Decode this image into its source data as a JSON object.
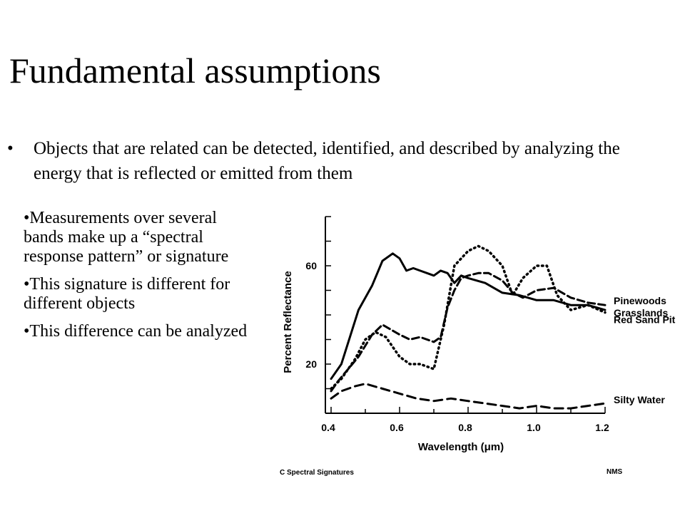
{
  "slide": {
    "title": "Fundamental assumptions",
    "bullet_symbol": "•",
    "main_bullet": "Objects that are related can be detected, identified, and described by analyzing the energy that is reflected or emitted from them",
    "side_bullets": [
      "•Measurements over several bands make up a “spectral response pattern” or signature",
      "•This signature is different for different objects",
      "•This difference can be analyzed"
    ]
  },
  "chart_data": {
    "type": "line",
    "xlabel": "Wavelength (μm)",
    "ylabel": "Percent Reflectance",
    "x_ticks": [
      "0.4",
      "0.6",
      "0.8",
      "1.0",
      "1.2"
    ],
    "y_ticks": [
      "20",
      "60"
    ],
    "xlim": [
      0.4,
      1.2
    ],
    "ylim": [
      0,
      80
    ],
    "caption": "C  Spectral Signatures",
    "credit": "NMS",
    "series": [
      {
        "name": "Pinewoods",
        "style": "solid",
        "points": [
          [
            0.4,
            14
          ],
          [
            0.43,
            20
          ],
          [
            0.48,
            42
          ],
          [
            0.52,
            52
          ],
          [
            0.55,
            62
          ],
          [
            0.58,
            65
          ],
          [
            0.6,
            63
          ],
          [
            0.62,
            58
          ],
          [
            0.64,
            59
          ],
          [
            0.66,
            58
          ],
          [
            0.68,
            57
          ],
          [
            0.7,
            56
          ],
          [
            0.72,
            58
          ],
          [
            0.74,
            57
          ],
          [
            0.76,
            53
          ],
          [
            0.78,
            56
          ],
          [
            0.8,
            55
          ],
          [
            0.85,
            53
          ],
          [
            0.9,
            49
          ],
          [
            0.95,
            48
          ],
          [
            1.0,
            46
          ],
          [
            1.05,
            46
          ],
          [
            1.1,
            44
          ],
          [
            1.15,
            44
          ],
          [
            1.2,
            42
          ]
        ]
      },
      {
        "name": "Grasslands",
        "style": "dashed",
        "points": [
          [
            0.4,
            9
          ],
          [
            0.42,
            13
          ],
          [
            0.45,
            18
          ],
          [
            0.48,
            23
          ],
          [
            0.52,
            32
          ],
          [
            0.55,
            36
          ],
          [
            0.6,
            32
          ],
          [
            0.63,
            30
          ],
          [
            0.66,
            31
          ],
          [
            0.7,
            29
          ],
          [
            0.72,
            31
          ],
          [
            0.74,
            43
          ],
          [
            0.76,
            50
          ],
          [
            0.78,
            55
          ],
          [
            0.8,
            56
          ],
          [
            0.83,
            57
          ],
          [
            0.86,
            57
          ],
          [
            0.9,
            54
          ],
          [
            0.93,
            49
          ],
          [
            0.96,
            47
          ],
          [
            1.0,
            50
          ],
          [
            1.05,
            51
          ],
          [
            1.1,
            47
          ],
          [
            1.15,
            45
          ],
          [
            1.2,
            44
          ]
        ]
      },
      {
        "name": "Red Sand Pit",
        "style": "dotted",
        "points": [
          [
            0.4,
            10
          ],
          [
            0.43,
            14
          ],
          [
            0.47,
            22
          ],
          [
            0.5,
            30
          ],
          [
            0.53,
            33
          ],
          [
            0.56,
            31
          ],
          [
            0.6,
            23
          ],
          [
            0.63,
            20
          ],
          [
            0.66,
            20
          ],
          [
            0.7,
            18
          ],
          [
            0.73,
            36
          ],
          [
            0.76,
            60
          ],
          [
            0.78,
            63
          ],
          [
            0.8,
            66
          ],
          [
            0.83,
            68
          ],
          [
            0.86,
            66
          ],
          [
            0.9,
            60
          ],
          [
            0.93,
            48
          ],
          [
            0.96,
            55
          ],
          [
            1.0,
            60
          ],
          [
            1.03,
            60
          ],
          [
            1.06,
            48
          ],
          [
            1.1,
            42
          ],
          [
            1.15,
            44
          ],
          [
            1.2,
            41
          ]
        ]
      },
      {
        "name": "Silty Water",
        "style": "long-dash",
        "points": [
          [
            0.4,
            6
          ],
          [
            0.43,
            9
          ],
          [
            0.47,
            11
          ],
          [
            0.5,
            12
          ],
          [
            0.55,
            10
          ],
          [
            0.6,
            8
          ],
          [
            0.65,
            6
          ],
          [
            0.7,
            5
          ],
          [
            0.75,
            6
          ],
          [
            0.8,
            5
          ],
          [
            0.85,
            4
          ],
          [
            0.9,
            3
          ],
          [
            0.95,
            2
          ],
          [
            1.0,
            3
          ],
          [
            1.05,
            2
          ],
          [
            1.1,
            2
          ],
          [
            1.15,
            3
          ],
          [
            1.2,
            4
          ]
        ]
      }
    ]
  }
}
